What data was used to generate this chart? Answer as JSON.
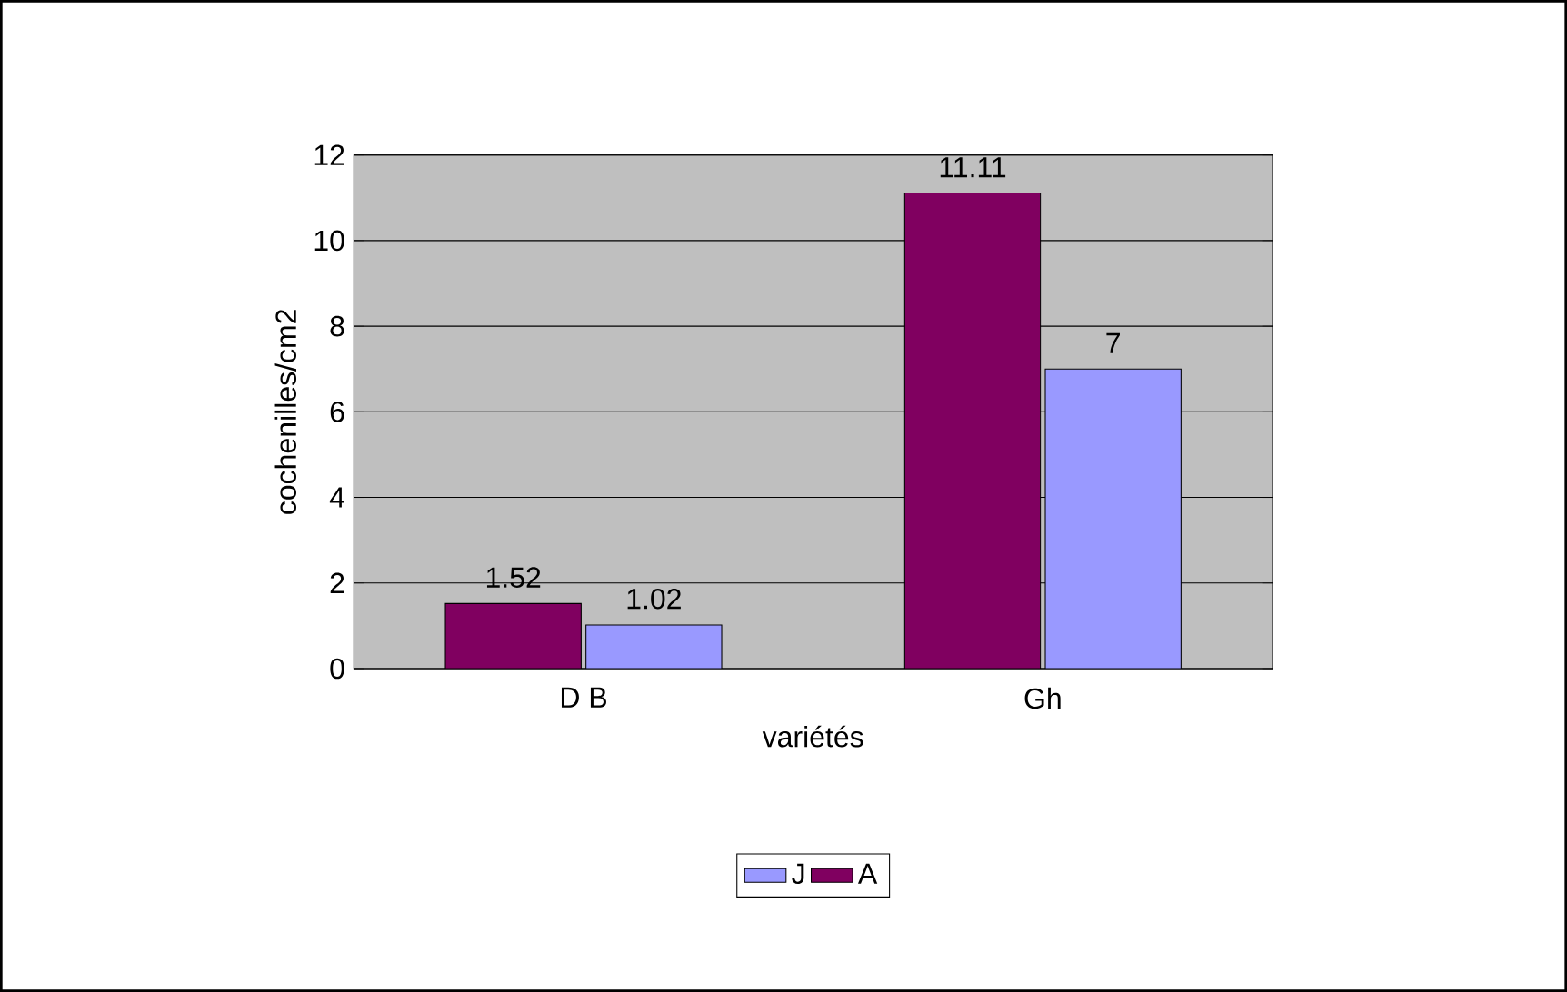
{
  "chart_data": {
    "type": "bar",
    "xlabel": "variétés",
    "ylabel": "cochenilles/cm2",
    "categories": [
      "D B",
      "Gh"
    ],
    "series": [
      {
        "name": "A",
        "color": "#800060",
        "values": [
          1.52,
          11.11
        ]
      },
      {
        "name": "J",
        "color": "#9999ff",
        "values": [
          1.02,
          7
        ]
      }
    ],
    "ylim": [
      0,
      12
    ],
    "yticks": [
      0,
      2,
      4,
      6,
      8,
      10,
      12
    ],
    "grid": "y",
    "legend": "bottom",
    "data_labels": true
  }
}
